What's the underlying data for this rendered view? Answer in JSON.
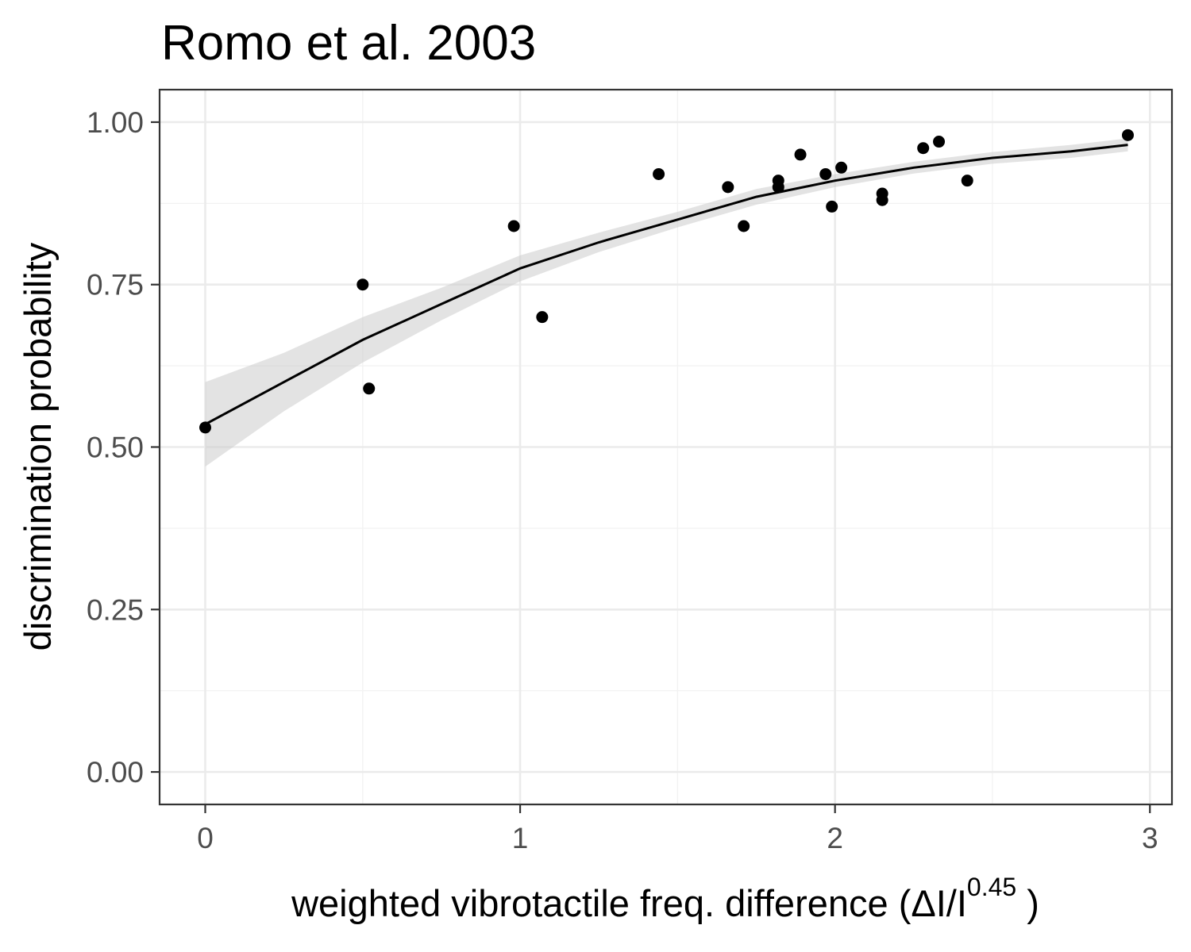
{
  "colors": {
    "points": "#000000",
    "fit_line": "#000000",
    "ribbon": "#cccccc",
    "panel_border": "#333333"
  },
  "chart_data": {
    "type": "scatter",
    "title": "Romo et al. 2003",
    "xlabel": {
      "main": "weighted  vibrotactile freq.  difference (ΔI/I",
      "superscript": "0.45",
      "tail": " )"
    },
    "ylabel": "discrimination probability",
    "xlim": [
      -0.145,
      3.07
    ],
    "ylim": [
      -0.05,
      1.05
    ],
    "x_ticks": [
      0,
      1,
      2,
      3
    ],
    "x_tick_labels": [
      "0",
      "1",
      "2",
      "3"
    ],
    "y_ticks": [
      0,
      0.25,
      0.5,
      0.75,
      1
    ],
    "y_tick_labels": [
      "0.00",
      "0.25",
      "0.50",
      "0.75",
      "1.00"
    ],
    "x_minor_ticks": [
      0.5,
      1.5,
      2.5
    ],
    "y_minor_ticks": [
      0.125,
      0.375,
      0.625,
      0.875
    ],
    "grid": true,
    "legend": "none",
    "points": [
      {
        "x": 0.0,
        "y": 0.53
      },
      {
        "x": 0.5,
        "y": 0.75
      },
      {
        "x": 0.52,
        "y": 0.59
      },
      {
        "x": 0.98,
        "y": 0.84
      },
      {
        "x": 1.07,
        "y": 0.7
      },
      {
        "x": 1.44,
        "y": 0.92
      },
      {
        "x": 1.66,
        "y": 0.9
      },
      {
        "x": 1.71,
        "y": 0.84
      },
      {
        "x": 1.82,
        "y": 0.91
      },
      {
        "x": 1.82,
        "y": 0.9
      },
      {
        "x": 1.89,
        "y": 0.95
      },
      {
        "x": 1.97,
        "y": 0.92
      },
      {
        "x": 1.99,
        "y": 0.87
      },
      {
        "x": 2.02,
        "y": 0.93
      },
      {
        "x": 2.15,
        "y": 0.89
      },
      {
        "x": 2.15,
        "y": 0.88
      },
      {
        "x": 2.28,
        "y": 0.96
      },
      {
        "x": 2.33,
        "y": 0.97
      },
      {
        "x": 2.42,
        "y": 0.91
      },
      {
        "x": 2.93,
        "y": 0.98
      }
    ],
    "fit": {
      "x": [
        0.0,
        0.25,
        0.5,
        0.75,
        1.0,
        1.25,
        1.5,
        1.75,
        2.0,
        2.25,
        2.5,
        2.75,
        2.93
      ],
      "y": [
        0.535,
        0.6,
        0.665,
        0.72,
        0.775,
        0.815,
        0.85,
        0.885,
        0.91,
        0.93,
        0.945,
        0.955,
        0.965
      ],
      "lower": [
        0.47,
        0.555,
        0.63,
        0.695,
        0.755,
        0.8,
        0.838,
        0.873,
        0.9,
        0.921,
        0.936,
        0.945,
        0.955
      ],
      "upper": [
        0.6,
        0.645,
        0.7,
        0.745,
        0.795,
        0.83,
        0.862,
        0.897,
        0.92,
        0.939,
        0.954,
        0.965,
        0.975
      ]
    }
  }
}
